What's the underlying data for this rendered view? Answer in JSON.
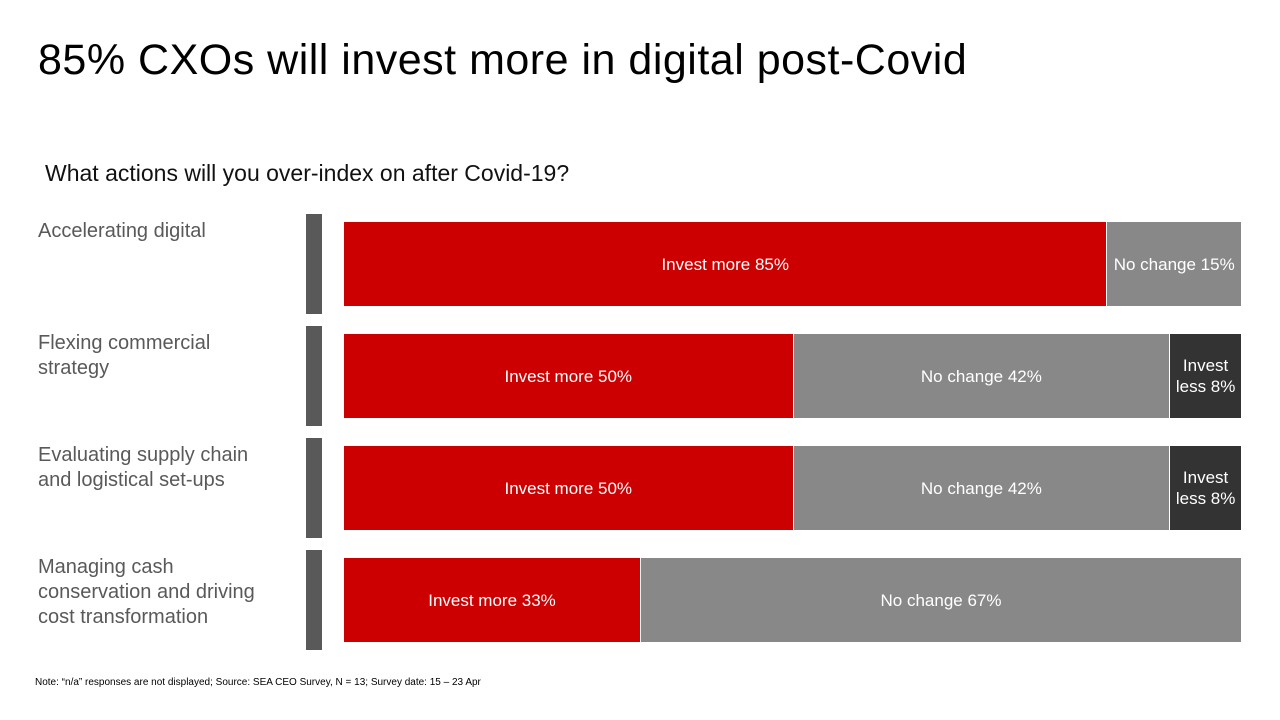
{
  "title": "85% CXOs will invest more in digital post-Covid",
  "subtitle": "What actions will you over-index on after Covid-19?",
  "note": "Note: “n/a” responses are not displayed; Source: SEA CEO Survey, N = 13; Survey date: 15 – 23 Apr",
  "colors": {
    "invest_more": "#cc0000",
    "no_change": "#888888",
    "invest_less": "#333333",
    "accent": "#595959"
  },
  "chart_data": {
    "type": "bar",
    "orientation": "horizontal",
    "stacked": true,
    "title": "What actions will you over-index on after Covid-19?",
    "categories": [
      "Accelerating digital",
      "Flexing commercial strategy",
      "Evaluating supply chain and logistical set-ups",
      "Managing cash conservation and driving cost transformation"
    ],
    "series": [
      {
        "name": "Invest more",
        "values": [
          85,
          50,
          50,
          33
        ]
      },
      {
        "name": "No change",
        "values": [
          15,
          42,
          42,
          67
        ]
      },
      {
        "name": "Invest less",
        "values": [
          0,
          8,
          8,
          0
        ]
      }
    ],
    "xlim": [
      0,
      100
    ],
    "rows": [
      {
        "label": "Accelerating digital",
        "segments": [
          {
            "key": "invest_more",
            "value": 85,
            "text": "Invest more 85%"
          },
          {
            "key": "no_change",
            "value": 15,
            "text": "No change 15%"
          }
        ]
      },
      {
        "label": "Flexing commercial strategy",
        "segments": [
          {
            "key": "invest_more",
            "value": 50,
            "text": "Invest more 50%"
          },
          {
            "key": "no_change",
            "value": 42,
            "text": "No change 42%"
          },
          {
            "key": "invest_less",
            "value": 8,
            "text": "Invest less 8%"
          }
        ]
      },
      {
        "label": "Evaluating supply chain and logistical set-ups",
        "segments": [
          {
            "key": "invest_more",
            "value": 50,
            "text": "Invest more 50%"
          },
          {
            "key": "no_change",
            "value": 42,
            "text": "No change 42%"
          },
          {
            "key": "invest_less",
            "value": 8,
            "text": "Invest less 8%"
          }
        ]
      },
      {
        "label": "Managing cash conservation and driving cost transformation",
        "segments": [
          {
            "key": "invest_more",
            "value": 33,
            "text": "Invest more 33%"
          },
          {
            "key": "no_change",
            "value": 67,
            "text": "No change 67%"
          }
        ]
      }
    ]
  }
}
